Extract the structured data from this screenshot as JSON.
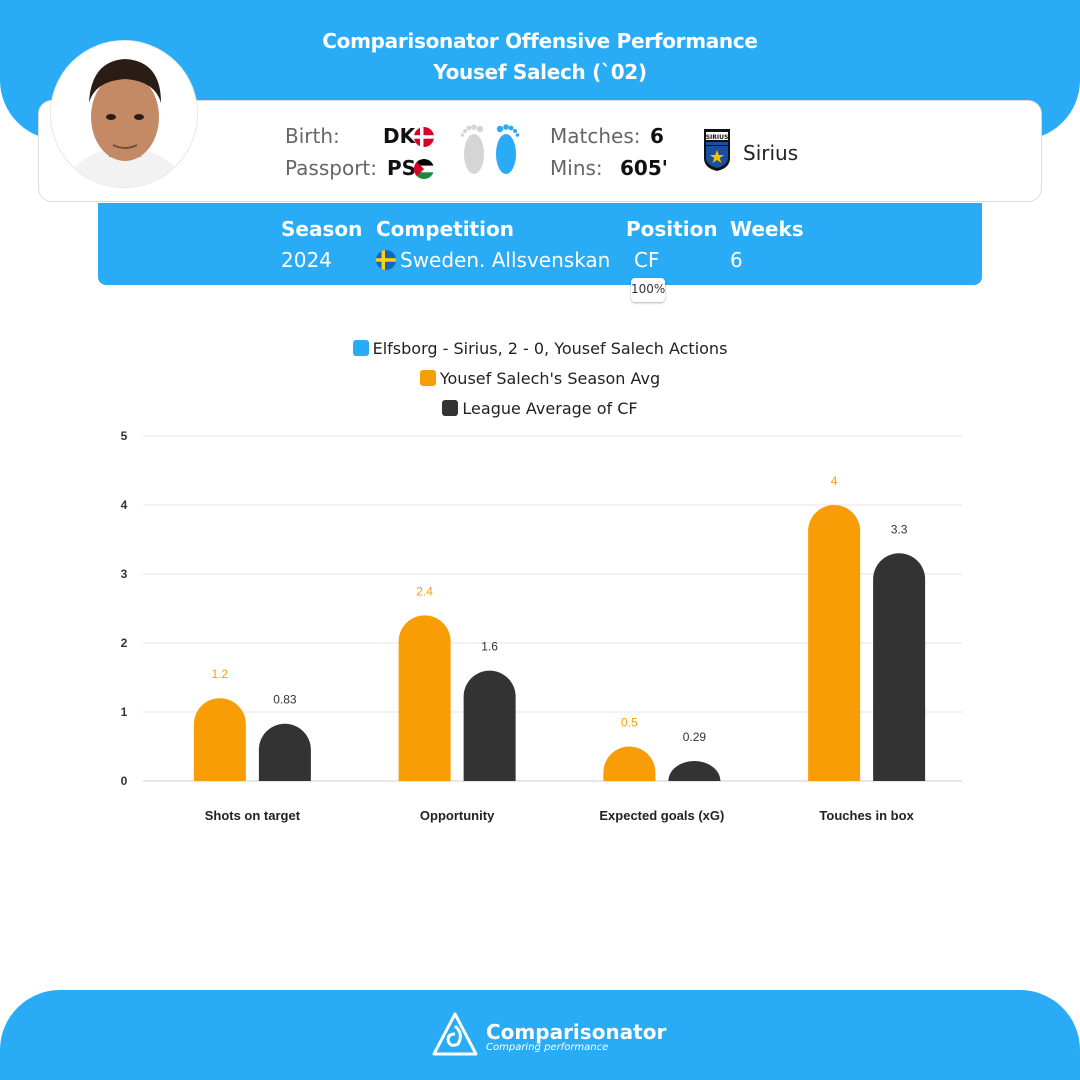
{
  "header": {
    "title_line1": "Comparisonator Offensive Performance",
    "title_line2": "Yousef Salech (`02)"
  },
  "player": {
    "birth_label": "Birth:",
    "birth_country": "DK",
    "passport_label": "Passport:",
    "passport_country": "PS",
    "matches_label": "Matches:",
    "matches_value": "6",
    "mins_label": "Mins:",
    "mins_value": "605'",
    "club": "Sirius",
    "club_badge_text": "SIRIUS"
  },
  "competition": {
    "season_label": "Season",
    "season_value": "2024",
    "competition_label": "Competition",
    "competition_value": "Sweden. Allsvenskan",
    "position_label": "Position",
    "position_value": "CF",
    "position_pct": "100%",
    "weeks_label": "Weeks",
    "weeks_value": "6"
  },
  "legend": {
    "items": [
      {
        "label": "Elfsborg - Sirius, 2 - 0, Yousef Salech Actions",
        "color": "#29abf5"
      },
      {
        "label": "Yousef Salech's Season Avg",
        "color": "#f99d07"
      },
      {
        "label": "League Average of CF",
        "color": "#333333"
      }
    ]
  },
  "chart_data": {
    "type": "bar",
    "categories": [
      "Shots on target",
      "Opportunity",
      "Expected goals (xG)",
      "Touches in box"
    ],
    "series": [
      {
        "name": "Yousef Salech's Season Avg",
        "color": "#f99d07",
        "values": [
          1.2,
          2.4,
          0.5,
          4
        ],
        "labels": [
          "1.2",
          "2.4",
          "0.5",
          "4"
        ]
      },
      {
        "name": "League Average of CF",
        "color": "#333333",
        "values": [
          0.83,
          1.6,
          0.29,
          3.3
        ],
        "labels": [
          "0.83",
          "1.6",
          "0.29",
          "3.3"
        ]
      }
    ],
    "yticks": [
      "0",
      "1",
      "2",
      "3",
      "4",
      "5"
    ],
    "ylim": [
      0,
      5
    ],
    "grid": true,
    "legend_position": "top-center"
  },
  "footer": {
    "brand": "Comparisonator",
    "tagline": "Comparing performance"
  }
}
